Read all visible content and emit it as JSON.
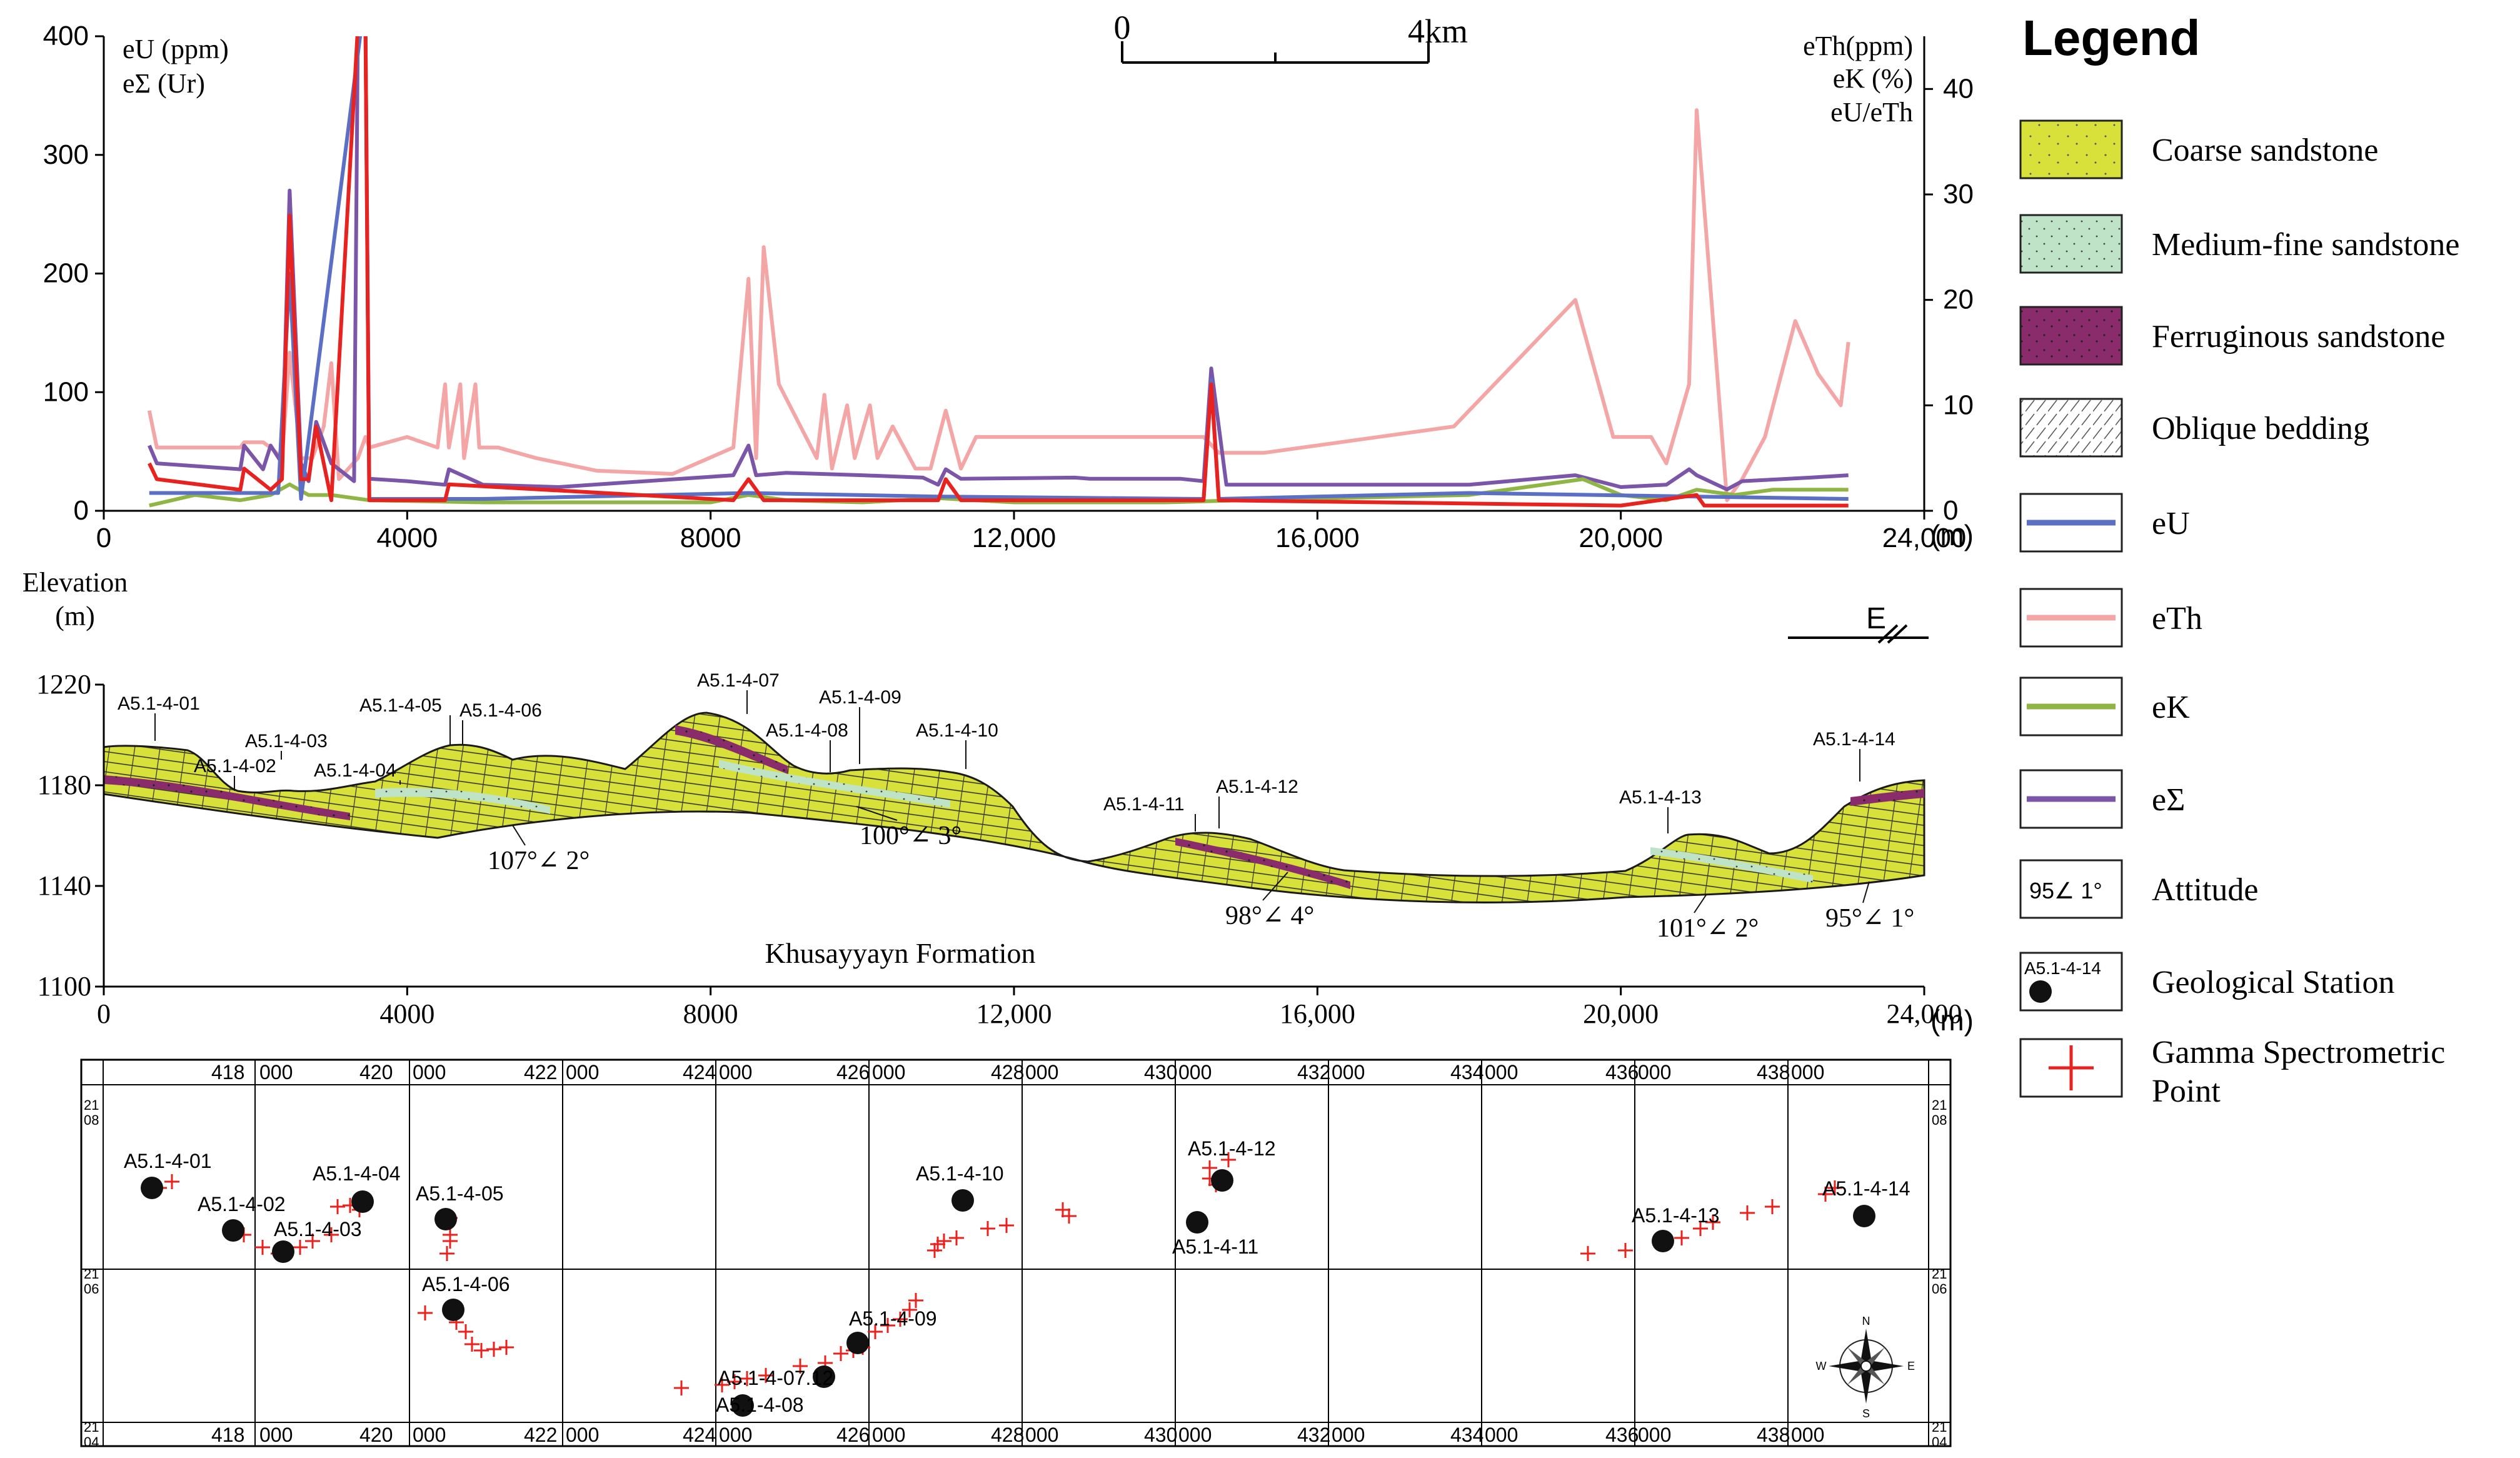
{
  "colors": {
    "eU": "#5b6fc4",
    "eTh": "#f4a6a6",
    "eK": "#8fb645",
    "eSigma": "#7b55a8",
    "red": "#e8231f",
    "coarse": "#d8e03a",
    "mediumFine": "#bfe3c6",
    "ferruginous": "#8a2c6c"
  },
  "chart_data": {
    "type": "line",
    "title": "",
    "xlabel": "(m)",
    "xlim": [
      0,
      24000
    ],
    "x_ticks": [
      "0",
      "4000",
      "8000",
      "12,000",
      "16,000",
      "20,000",
      "24,000"
    ],
    "x_unit": "(m)",
    "left_axis": {
      "labels": [
        "eU (ppm)",
        "eΣ (Ur)"
      ],
      "ylim": [
        0,
        400
      ],
      "ticks": [
        "0",
        "100",
        "200",
        "300",
        "400"
      ]
    },
    "right_axis": {
      "labels": [
        "eTh(ppm)",
        "eK (%)",
        "eU/eTh"
      ],
      "ylim": [
        0,
        45
      ],
      "ticks": [
        "0",
        "10",
        "20",
        "30",
        "40"
      ]
    },
    "series": [
      {
        "name": "eTh",
        "axis": "right",
        "x": [
          600,
          700,
          1200,
          1800,
          1850,
          2100,
          2200,
          2350,
          2450,
          2600,
          2750,
          2900,
          3000,
          3100,
          3350,
          3450,
          3500,
          4000,
          4400,
          4500,
          4550,
          4700,
          4750,
          4900,
          4950,
          5200,
          5700,
          6500,
          7500,
          8300,
          8500,
          8600,
          8700,
          8900,
          9400,
          9500,
          9600,
          9800,
          9900,
          10100,
          10200,
          10400,
          10700,
          10900,
          11100,
          11300,
          11500,
          11800,
          12100,
          12300,
          12800,
          14000,
          14500,
          14700,
          15300,
          17800,
          19400,
          19900,
          20400,
          20600,
          20900,
          21000,
          21400,
          21600,
          21900,
          22300,
          22600,
          22900,
          23000
        ],
        "y": [
          9.5,
          6,
          6,
          6,
          6.5,
          6.5,
          6,
          5,
          15,
          5,
          5,
          8,
          14,
          3,
          5,
          7,
          6,
          7,
          6,
          12,
          6,
          12,
          5,
          12,
          6,
          6,
          5,
          3.8,
          3.5,
          6,
          22,
          5,
          25,
          12,
          5,
          11,
          4,
          10,
          5,
          10,
          5,
          8,
          4,
          4,
          9.5,
          4,
          7,
          7,
          7,
          7,
          7,
          7,
          7,
          5.5,
          5.5,
          8,
          20,
          7,
          7,
          4.5,
          12,
          38,
          1,
          3,
          7,
          18,
          13,
          10,
          16
        ]
      },
      {
        "name": "eΣ",
        "axis": "left",
        "x": [
          600,
          700,
          1800,
          1850,
          2100,
          2200,
          2350,
          2450,
          2600,
          2700,
          2800,
          3000,
          3300,
          3350,
          3450,
          3500,
          4000,
          4500,
          4550,
          5000,
          6000,
          8300,
          8500,
          8600,
          9000,
          10000,
          10800,
          11000,
          11100,
          11300,
          12800,
          13000,
          14200,
          14500,
          14600,
          14800,
          15000,
          18000,
          19400,
          20000,
          20600,
          20900,
          21000,
          21400,
          21600,
          22500,
          23000
        ],
        "y": [
          55,
          40,
          35,
          55,
          35,
          55,
          40,
          270,
          40,
          25,
          75,
          40,
          25,
          410,
          410,
          27,
          25,
          22,
          35,
          22,
          20,
          30,
          55,
          30,
          32,
          30,
          28,
          22,
          35,
          27,
          28,
          27,
          27,
          25,
          120,
          22,
          22,
          22,
          30,
          20,
          22,
          35,
          30,
          18,
          25,
          28,
          30
        ]
      },
      {
        "name": "eK",
        "axis": "right",
        "x": [
          600,
          1200,
          1800,
          2200,
          2450,
          2700,
          3000,
          3500,
          5000,
          8000,
          8500,
          9000,
          10000,
          11000,
          12000,
          14000,
          15000,
          18000,
          19500,
          20000,
          20600,
          21000,
          21500,
          22000,
          23000
        ],
        "y": [
          0.5,
          1.5,
          1,
          1.5,
          2.5,
          1.5,
          1.5,
          1,
          0.8,
          0.8,
          1.5,
          1,
          0.8,
          1.2,
          0.8,
          0.8,
          1,
          1.5,
          3,
          1.5,
          1,
          2,
          1.5,
          2,
          2
        ]
      },
      {
        "name": "eU",
        "axis": "left",
        "x": [
          600,
          2300,
          2450,
          2600,
          3400,
          3450,
          3500,
          5000,
          8500,
          11000,
          14500,
          14600,
          14700,
          18000,
          21000,
          23000
        ],
        "y": [
          15,
          15,
          200,
          10,
          410,
          410,
          10,
          10,
          15,
          12,
          10,
          110,
          10,
          15,
          12,
          10
        ]
      },
      {
        "name": "eU/eTh",
        "axis": "right",
        "x": [
          600,
          700,
          1800,
          1850,
          2200,
          2350,
          2450,
          2600,
          2700,
          2800,
          3000,
          3350,
          3450,
          3500,
          4500,
          4550,
          8300,
          8500,
          8700,
          11000,
          11100,
          11300,
          14500,
          14600,
          14700,
          20000,
          21000,
          21100,
          21300,
          23000
        ],
        "y": [
          4.5,
          3,
          2,
          4,
          2,
          3,
          28,
          3,
          3,
          8,
          1,
          46,
          46,
          1,
          1,
          2.5,
          1,
          3,
          1,
          1,
          3,
          1,
          1,
          12,
          1,
          0.5,
          1.5,
          0.5,
          0.5,
          0.5
        ]
      }
    ]
  },
  "scale_bar": {
    "start": "0",
    "end": "4km"
  },
  "legend": {
    "title": "Legend",
    "items": [
      {
        "label": "Coarse sandstone"
      },
      {
        "label": "Medium-fine sandstone"
      },
      {
        "label": "Ferruginous sandstone"
      },
      {
        "label": "Oblique bedding"
      },
      {
        "label": "eU"
      },
      {
        "label": "eTh"
      },
      {
        "label": "eK"
      },
      {
        "label": "eΣ"
      },
      {
        "label": "Attitude",
        "symbol_text": "95∠ 1°"
      },
      {
        "label": "Geological Station",
        "symbol_text": "A5.1-4-14"
      },
      {
        "label": "Gamma Spectrometric Point",
        "label_line2": "Point",
        "label_line1": "Gamma Spectrometric"
      }
    ]
  },
  "profile": {
    "elevation_label": "Elevation",
    "elevation_unit": "(m)",
    "y_ticks": [
      "1220",
      "1180",
      "1140",
      "1100"
    ],
    "x_ticks": [
      "0",
      "4000",
      "8000",
      "12,000",
      "16,000",
      "20,000",
      "24,000"
    ],
    "x_unit": "(m)",
    "direction": "E",
    "formation": "Khusayyayn Formation",
    "stations": [
      "A5.1-4-01",
      "A5.1-4-02",
      "A5.1-4-03",
      "A5.1-4-04",
      "A5.1-4-05",
      "A5.1-4-06",
      "A5.1-4-07",
      "A5.1-4-08",
      "A5.1-4-09",
      "A5.1-4-10",
      "A5.1-4-11",
      "A5.1-4-12",
      "A5.1-4-13",
      "A5.1-4-14"
    ],
    "attitudes": [
      "107°∠ 2°",
      "100°∠ 3°",
      "98°∠ 4°",
      "101°∠ 2°",
      "95°∠ 1°"
    ]
  },
  "map": {
    "x_labels": [
      "418",
      "000",
      "420",
      "000",
      "422",
      "000",
      "424",
      "000",
      "426",
      "000",
      "428",
      "000",
      "430",
      "000",
      "432",
      "000",
      "434",
      "000",
      "436",
      "000",
      "438",
      "000"
    ],
    "y_labels": [
      [
        "21",
        "08"
      ],
      [
        "21",
        "06"
      ],
      [
        "21",
        "04"
      ]
    ],
    "stations": [
      "A5.1-4-01",
      "A5.1-4-02",
      "A5.1-4-03",
      "A5.1-4-04",
      "A5.1-4-05",
      "A5.1-4-06",
      "A5.1-4-07",
      "A5.1-4-08",
      "A5.1-4-09",
      "A5.1-4-10",
      "A5.1-4-11",
      "A5.1-4-12",
      "A5.1-4-13",
      "A5.1-4-14"
    ],
    "station_07_label": "A5.1-4-07.12",
    "compass": {
      "n": "N",
      "s": "S",
      "w": "W",
      "e": "E"
    }
  }
}
